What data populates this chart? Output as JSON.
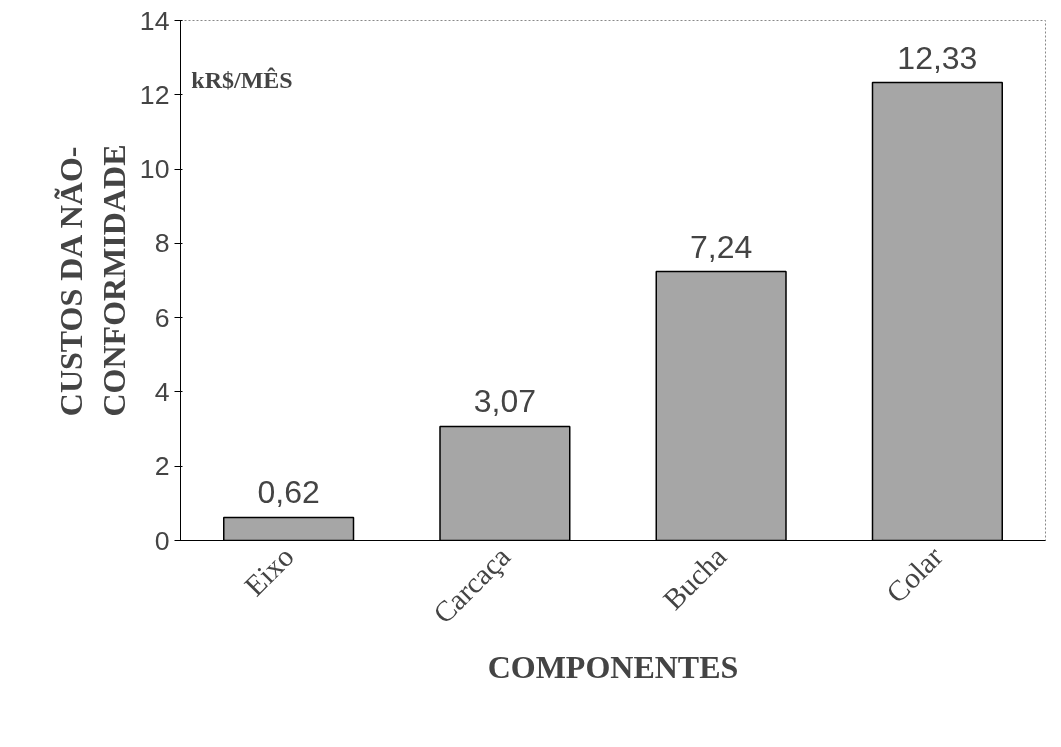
{
  "chart_data": {
    "type": "bar",
    "xlabel": "COMPONENTES",
    "ylabel": "CUSTOS DA NÃO-\nCONFORMIDADE",
    "categories": [
      "Eixo",
      "Carcaça",
      "Bucha",
      "Colar"
    ],
    "values": [
      0.62,
      3.07,
      7.24,
      12.33
    ],
    "color": "#a6a6a6",
    "value_labels": [
      "0,62",
      "3,07",
      "7,24",
      "12,33"
    ],
    "ylim": [
      0,
      14
    ],
    "yticks": [
      0,
      2,
      4,
      6,
      8,
      10,
      12,
      14
    ],
    "grid": false,
    "annotations": [
      "kR$/MÊS"
    ]
  }
}
